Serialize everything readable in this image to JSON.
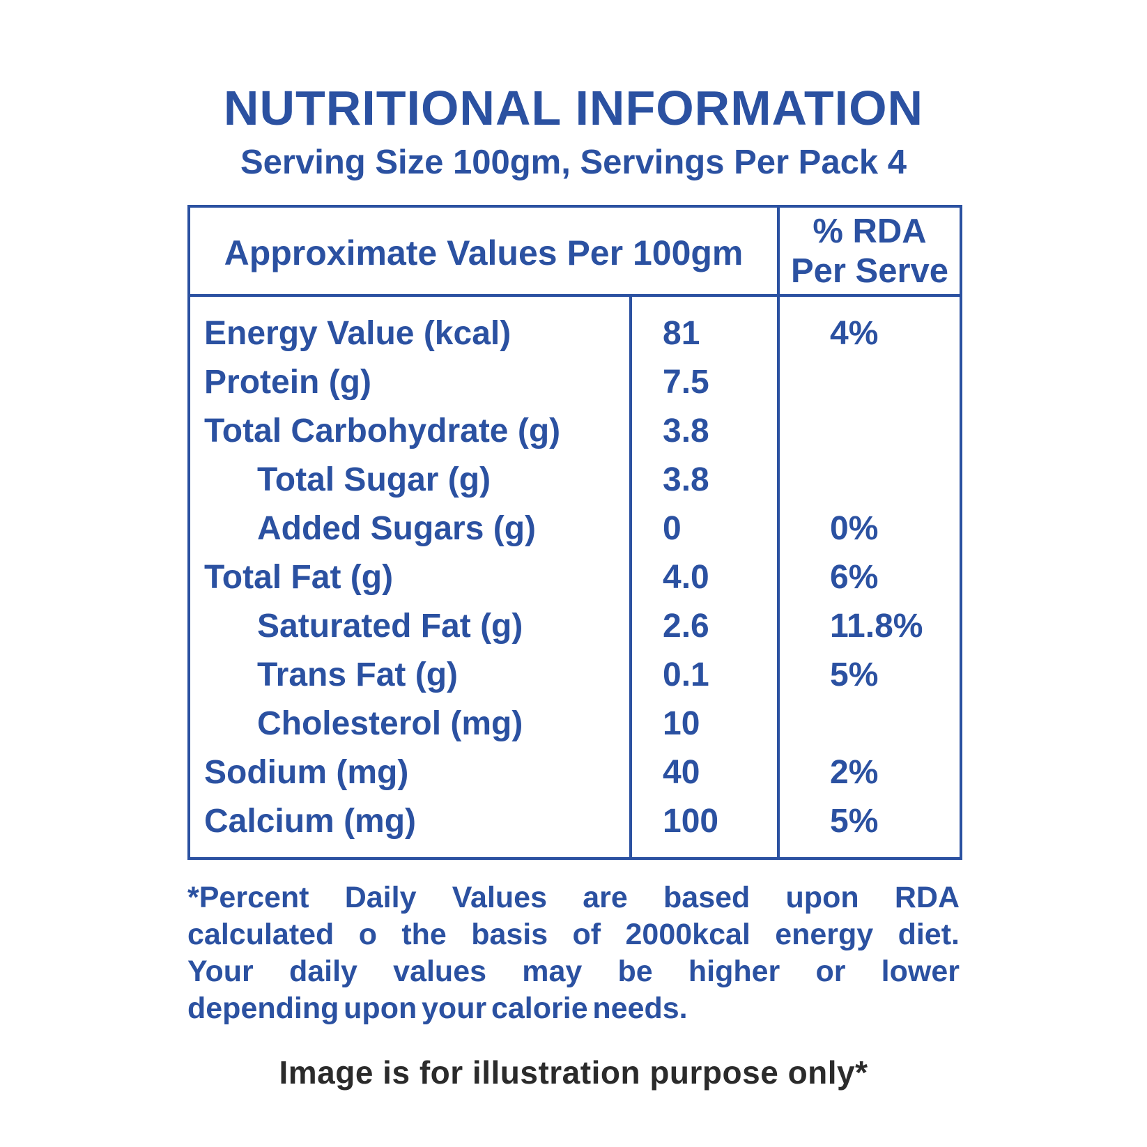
{
  "title": "NUTRITIONAL INFORMATION",
  "subtitle": "Serving Size 100gm, Servings Per Pack 4",
  "colors": {
    "accent_blue": "#2B51A1",
    "note_dark": "#2B2B2B"
  },
  "table": {
    "header_left": "Approximate Values Per 100gm",
    "header_right_line1": "% RDA",
    "header_right_line2": "Per Serve",
    "rows": [
      {
        "label": "Energy Value (kcal)",
        "value": "81",
        "rda": "4%",
        "indent": false
      },
      {
        "label": "Protein (g)",
        "value": "7.5",
        "rda": "",
        "indent": false
      },
      {
        "label": "Total Carbohydrate (g)",
        "value": "3.8",
        "rda": "",
        "indent": false
      },
      {
        "label": "Total Sugar (g)",
        "value": "3.8",
        "rda": "",
        "indent": true
      },
      {
        "label": "Added Sugars (g)",
        "value": "0",
        "rda": "0%",
        "indent": true
      },
      {
        "label": "Total Fat (g)",
        "value": "4.0",
        "rda": "6%",
        "indent": false
      },
      {
        "label": "Saturated Fat (g)",
        "value": "2.6",
        "rda": "11.8%",
        "indent": true
      },
      {
        "label": "Trans Fat (g)",
        "value": "0.1",
        "rda": "5%",
        "indent": true
      },
      {
        "label": "Cholesterol (mg)",
        "value": "10",
        "rda": "",
        "indent": true
      },
      {
        "label": "Sodium (mg)",
        "value": "40",
        "rda": "2%",
        "indent": false
      },
      {
        "label": "Calcium (mg)",
        "value": "100",
        "rda": "5%",
        "indent": false
      }
    ]
  },
  "footnote": {
    "lines": [
      "*Percent Daily Values are based upon RDA",
      "calculated o the basis of 2000kcal energy diet.",
      "Your daily values may be higher or lower",
      "depending upon your calorie needs."
    ]
  },
  "bottom_note": "Image is for illustration purpose only*"
}
